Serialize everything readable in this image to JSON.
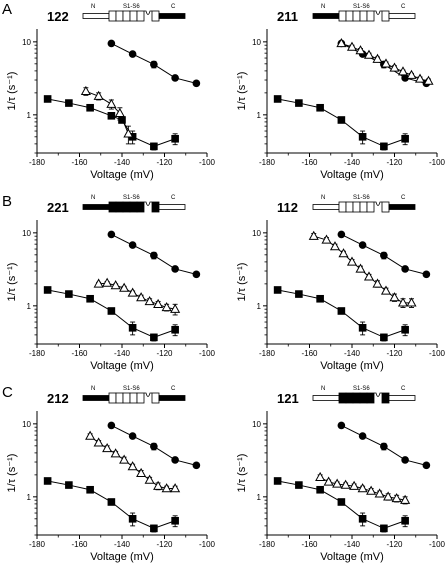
{
  "figure": {
    "panel_letters": [
      "A",
      "B",
      "C"
    ],
    "schematic_labels": {
      "n": "N",
      "segments": "S1-S6",
      "c": "C"
    }
  },
  "chart_data": [
    {
      "type": "scatter",
      "construct": "122",
      "panel": "A",
      "xlabel": "Voltage (mV)",
      "ylabel": "1/τ (s⁻¹)",
      "xlim": [
        -180,
        -100
      ],
      "ylim": [
        0.3,
        15
      ],
      "yscale": "log",
      "xticks": [
        -180,
        -160,
        -140,
        -120,
        -100
      ],
      "yticks": [
        {
          "value": 1,
          "label": "1"
        },
        {
          "value": 10,
          "label": "10"
        }
      ],
      "schematic": {
        "n_tail": "open",
        "core": "open",
        "c_tail": "filled"
      },
      "series": [
        {
          "marker": "circle-filled",
          "x": [
            -145,
            -135,
            -125,
            -115,
            -105
          ],
          "y": [
            9.5,
            6.8,
            4.9,
            3.2,
            2.7
          ],
          "err": [
            0,
            0.4,
            0.5,
            0.2,
            0.2
          ]
        },
        {
          "marker": "square-filled",
          "x": [
            -175,
            -165,
            -155,
            -145,
            -140,
            -135,
            -125,
            -115
          ],
          "y": [
            1.65,
            1.45,
            1.25,
            0.97,
            0.85,
            0.5,
            0.37,
            0.47
          ],
          "err": [
            0.08,
            0.07,
            0.06,
            0.06,
            0.05,
            0.1,
            0.04,
            0.08
          ]
        },
        {
          "marker": "triangle-open",
          "x": [
            -157,
            -151,
            -145,
            -141,
            -137
          ],
          "y": [
            2.1,
            1.8,
            1.4,
            1.05,
            0.55
          ],
          "err": [
            0.25,
            0.2,
            0.2,
            0.2,
            0.15
          ]
        }
      ]
    },
    {
      "type": "scatter",
      "construct": "211",
      "panel": "A",
      "xlabel": "Voltage (mV)",
      "ylabel": "1/τ (s⁻¹)",
      "xlim": [
        -180,
        -100
      ],
      "ylim": [
        0.3,
        15
      ],
      "yscale": "log",
      "xticks": [
        -180,
        -160,
        -140,
        -120,
        -100
      ],
      "yticks": [
        {
          "value": 1,
          "label": "1"
        },
        {
          "value": 10,
          "label": "10"
        }
      ],
      "schematic": {
        "n_tail": "filled",
        "core": "open",
        "c_tail": "open"
      },
      "series": [
        {
          "marker": "circle-filled",
          "x": [
            -145,
            -135,
            -125,
            -115,
            -105
          ],
          "y": [
            9.5,
            6.8,
            4.9,
            3.2,
            2.7
          ],
          "err": [
            0,
            0.4,
            0.5,
            0.2,
            0.2
          ]
        },
        {
          "marker": "square-filled",
          "x": [
            -175,
            -165,
            -155,
            -145,
            -135,
            -125,
            -115
          ],
          "y": [
            1.65,
            1.45,
            1.25,
            0.85,
            0.5,
            0.37,
            0.47
          ],
          "err": [
            0.08,
            0.07,
            0.06,
            0.05,
            0.1,
            0.04,
            0.08
          ]
        },
        {
          "marker": "triangle-open",
          "x": [
            -145,
            -140,
            -136,
            -132,
            -128,
            -124,
            -120,
            -116,
            -112,
            -108,
            -104
          ],
          "y": [
            9.5,
            8.5,
            7.6,
            6.6,
            5.8,
            5.0,
            4.4,
            3.9,
            3.5,
            3.1,
            2.9
          ],
          "err": [
            0,
            0.5,
            0.5,
            0.4,
            0.4,
            0.3,
            0.3,
            0.2,
            0.2,
            0.2,
            0.2
          ]
        }
      ]
    },
    {
      "type": "scatter",
      "construct": "221",
      "panel": "B",
      "xlabel": "Voltage (mV)",
      "ylabel": "1/τ (s⁻¹)",
      "xlim": [
        -180,
        -100
      ],
      "ylim": [
        0.3,
        15
      ],
      "yscale": "log",
      "xticks": [
        -180,
        -160,
        -140,
        -120,
        -100
      ],
      "yticks": [
        {
          "value": 1,
          "label": "1"
        },
        {
          "value": 10,
          "label": "10"
        }
      ],
      "schematic": {
        "n_tail": "filled",
        "core": "filled",
        "c_tail": "open"
      },
      "series": [
        {
          "marker": "circle-filled",
          "x": [
            -145,
            -135,
            -125,
            -115,
            -105
          ],
          "y": [
            9.5,
            6.8,
            4.9,
            3.2,
            2.7
          ],
          "err": [
            0,
            0.4,
            0.5,
            0.2,
            0.2
          ]
        },
        {
          "marker": "square-filled",
          "x": [
            -175,
            -165,
            -155,
            -145,
            -135,
            -125,
            -115
          ],
          "y": [
            1.65,
            1.45,
            1.25,
            0.85,
            0.5,
            0.37,
            0.47
          ],
          "err": [
            0.08,
            0.07,
            0.06,
            0.05,
            0.1,
            0.04,
            0.08
          ]
        },
        {
          "marker": "triangle-open",
          "x": [
            -151,
            -147,
            -143,
            -139,
            -135,
            -131,
            -127,
            -123,
            -119,
            -115
          ],
          "y": [
            2.0,
            2.05,
            1.9,
            1.75,
            1.5,
            1.3,
            1.15,
            1.05,
            0.95,
            0.9
          ],
          "err": [
            0.1,
            0.1,
            0.1,
            0.1,
            0.1,
            0.1,
            0.1,
            0.1,
            0.1,
            0.15
          ]
        }
      ]
    },
    {
      "type": "scatter",
      "construct": "112",
      "panel": "B",
      "xlabel": "Voltage (mV)",
      "ylabel": "1/τ (s⁻¹)",
      "xlim": [
        -180,
        -100
      ],
      "ylim": [
        0.3,
        15
      ],
      "yscale": "log",
      "xticks": [
        -180,
        -160,
        -140,
        -120,
        -100
      ],
      "yticks": [
        {
          "value": 1,
          "label": "1"
        },
        {
          "value": 10,
          "label": "10"
        }
      ],
      "schematic": {
        "n_tail": "open",
        "core": "open",
        "c_tail": "filled"
      },
      "series": [
        {
          "marker": "circle-filled",
          "x": [
            -145,
            -135,
            -125,
            -115,
            -105
          ],
          "y": [
            9.5,
            6.8,
            4.9,
            3.2,
            2.7
          ],
          "err": [
            0,
            0.4,
            0.5,
            0.2,
            0.2
          ]
        },
        {
          "marker": "square-filled",
          "x": [
            -175,
            -165,
            -155,
            -145,
            -135,
            -125,
            -115
          ],
          "y": [
            1.65,
            1.45,
            1.25,
            0.85,
            0.5,
            0.37,
            0.47
          ],
          "err": [
            0.08,
            0.07,
            0.06,
            0.05,
            0.1,
            0.04,
            0.08
          ]
        },
        {
          "marker": "triangle-open",
          "x": [
            -158,
            -152,
            -148,
            -144,
            -140,
            -136,
            -132,
            -128,
            -124,
            -120,
            -116,
            -112
          ],
          "y": [
            9.0,
            8.0,
            6.5,
            5.2,
            4.0,
            3.2,
            2.5,
            2.0,
            1.6,
            1.3,
            1.1,
            1.1
          ],
          "err": [
            0.8,
            0.6,
            0.5,
            0.4,
            0.3,
            0.3,
            0.2,
            0.2,
            0.15,
            0.15,
            0.15,
            0.15
          ]
        }
      ]
    },
    {
      "type": "scatter",
      "construct": "212",
      "panel": "C",
      "xlabel": "Voltage (mV)",
      "ylabel": "1/τ (s⁻¹)",
      "xlim": [
        -180,
        -100
      ],
      "ylim": [
        0.3,
        15
      ],
      "yscale": "log",
      "xticks": [
        -180,
        -160,
        -140,
        -120,
        -100
      ],
      "yticks": [
        {
          "value": 1,
          "label": "1"
        },
        {
          "value": 10,
          "label": "10"
        }
      ],
      "schematic": {
        "n_tail": "filled",
        "core": "open",
        "c_tail": "filled"
      },
      "series": [
        {
          "marker": "circle-filled",
          "x": [
            -145,
            -135,
            -125,
            -115,
            -105
          ],
          "y": [
            9.5,
            6.8,
            4.9,
            3.2,
            2.7
          ],
          "err": [
            0,
            0.4,
            0.5,
            0.2,
            0.2
          ]
        },
        {
          "marker": "square-filled",
          "x": [
            -175,
            -165,
            -155,
            -145,
            -135,
            -125,
            -115
          ],
          "y": [
            1.65,
            1.45,
            1.25,
            0.85,
            0.5,
            0.37,
            0.47
          ],
          "err": [
            0.08,
            0.07,
            0.06,
            0.05,
            0.1,
            0.04,
            0.08
          ]
        },
        {
          "marker": "triangle-open",
          "x": [
            -155,
            -151,
            -147,
            -143,
            -139,
            -135,
            -131,
            -127,
            -123,
            -119,
            -115
          ],
          "y": [
            6.8,
            5.5,
            4.6,
            3.9,
            3.2,
            2.6,
            2.1,
            1.7,
            1.4,
            1.3,
            1.3
          ],
          "err": [
            0.5,
            0.4,
            0.4,
            0.3,
            0.3,
            0.2,
            0.2,
            0.15,
            0.15,
            0.1,
            0.1
          ]
        }
      ]
    },
    {
      "type": "scatter",
      "construct": "121",
      "panel": "C",
      "xlabel": "Voltage (mV)",
      "ylabel": "1/τ (s⁻¹)",
      "xlim": [
        -180,
        -100
      ],
      "ylim": [
        0.3,
        15
      ],
      "yscale": "log",
      "xticks": [
        -180,
        -160,
        -140,
        -120,
        -100
      ],
      "yticks": [
        {
          "value": 1,
          "label": "1"
        },
        {
          "value": 10,
          "label": "10"
        }
      ],
      "schematic": {
        "n_tail": "open",
        "core": "filled",
        "c_tail": "open"
      },
      "series": [
        {
          "marker": "circle-filled",
          "x": [
            -145,
            -135,
            -125,
            -115,
            -105
          ],
          "y": [
            9.5,
            6.8,
            4.9,
            3.2,
            2.7
          ],
          "err": [
            0,
            0.4,
            0.5,
            0.2,
            0.2
          ]
        },
        {
          "marker": "square-filled",
          "x": [
            -175,
            -165,
            -155,
            -145,
            -135,
            -125,
            -115
          ],
          "y": [
            1.65,
            1.45,
            1.25,
            0.85,
            0.5,
            0.37,
            0.47
          ],
          "err": [
            0.08,
            0.07,
            0.06,
            0.05,
            0.1,
            0.04,
            0.08
          ]
        },
        {
          "marker": "triangle-open",
          "x": [
            -155,
            -151,
            -147,
            -143,
            -139,
            -135,
            -131,
            -127,
            -123,
            -119,
            -115
          ],
          "y": [
            1.85,
            1.6,
            1.5,
            1.45,
            1.4,
            1.3,
            1.2,
            1.1,
            1.0,
            0.95,
            0.9
          ],
          "err": [
            0.15,
            0.1,
            0.1,
            0.1,
            0.1,
            0.1,
            0.1,
            0.1,
            0.1,
            0.1,
            0.1
          ]
        }
      ]
    }
  ]
}
